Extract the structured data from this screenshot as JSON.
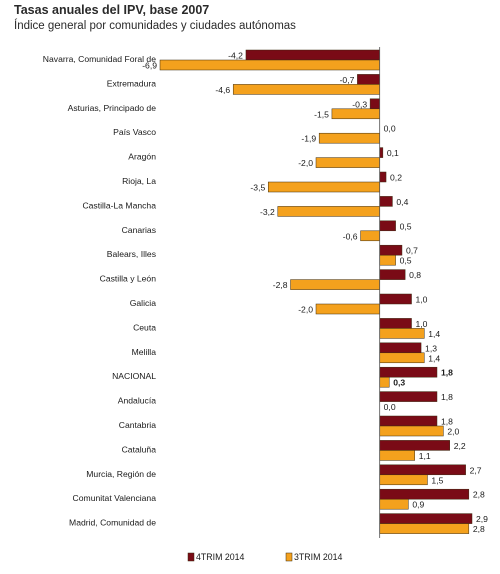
{
  "title": "Tasas anuales del IPV, base 2007",
  "subtitle": "Índice general por comunidades y ciudades autónomas",
  "colors": {
    "series1": "#7a0b16",
    "series2": "#f4a11d",
    "stroke": "#3a2a10"
  },
  "chart_data": {
    "type": "bar",
    "orientation": "horizontal",
    "title": "Tasas anuales del IPV, base 2007",
    "subtitle": "Índice general por comunidades y ciudades autónomas",
    "categories": [
      "Navarra, Comunidad Foral de",
      "Extremadura",
      "Asturias, Principado de",
      "País Vasco",
      "Aragón",
      "Rioja, La",
      "Castilla-La Mancha",
      "Canarias",
      "Balears, Illes",
      "Castilla y León",
      "Galicia",
      "Ceuta",
      "Melilla",
      "NACIONAL",
      "Andalucía",
      "Cantabria",
      "Cataluña",
      "Murcia, Región de",
      "Comunitat Valenciana",
      "Madrid, Comunidad de"
    ],
    "highlight_category": "NACIONAL",
    "series": [
      {
        "name": "4TRIM 2014",
        "values": [
          -4.2,
          -0.7,
          -0.3,
          0.0,
          0.1,
          0.2,
          0.4,
          0.5,
          0.7,
          0.8,
          1.0,
          1.0,
          1.3,
          1.8,
          1.8,
          1.8,
          2.2,
          2.7,
          2.8,
          2.9
        ]
      },
      {
        "name": "3TRIM 2014",
        "values": [
          -6.9,
          -4.6,
          -1.5,
          -1.9,
          -2.0,
          -3.5,
          -3.2,
          -0.6,
          0.5,
          -2.8,
          -2.0,
          1.4,
          1.4,
          0.3,
          0.0,
          2.0,
          1.1,
          1.5,
          0.9,
          2.8
        ]
      }
    ],
    "labels": {
      "4TRIM 2014": [
        "-4,2",
        "-0,7",
        "-0,3",
        "0,0",
        "0,1",
        "0,2",
        "0,4",
        "0,5",
        "0,7",
        "0,8",
        "1,0",
        "1,0",
        "1,3",
        "1,8",
        "1,8",
        "1,8",
        "2,2",
        "2,7",
        "2,8",
        "2,9"
      ],
      "3TRIM 2014": [
        "-6,9",
        "-4,6",
        "-1,5",
        "-1,9",
        "-2,0",
        "-3,5",
        "-3,2",
        "-0,6",
        "0,5",
        "-2,8",
        "-2,0",
        "1,4",
        "1,4",
        "0,3",
        "0,0",
        "2,0",
        "1,1",
        "1,5",
        "0,9",
        "2,8"
      ]
    },
    "xlim": [
      -6.9,
      2.9
    ],
    "xlabel": "",
    "ylabel": "",
    "grid": false,
    "legend": "bottom"
  }
}
